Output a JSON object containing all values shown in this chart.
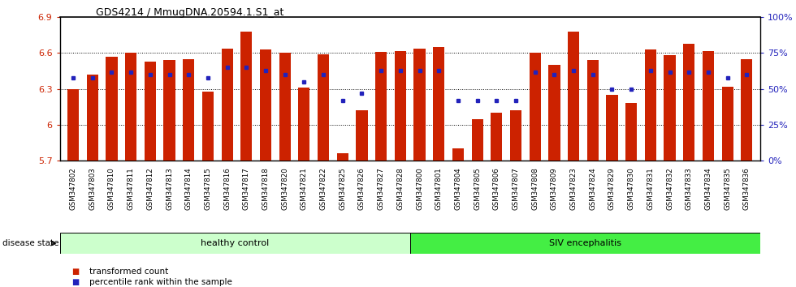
{
  "title": "GDS4214 / MmugDNA.20594.1.S1_at",
  "samples": [
    "GSM347802",
    "GSM347803",
    "GSM347810",
    "GSM347811",
    "GSM347812",
    "GSM347813",
    "GSM347814",
    "GSM347815",
    "GSM347816",
    "GSM347817",
    "GSM347818",
    "GSM347820",
    "GSM347821",
    "GSM347822",
    "GSM347825",
    "GSM347826",
    "GSM347827",
    "GSM347828",
    "GSM347800",
    "GSM347801",
    "GSM347804",
    "GSM347805",
    "GSM347806",
    "GSM347807",
    "GSM347808",
    "GSM347809",
    "GSM347823",
    "GSM347824",
    "GSM347829",
    "GSM347830",
    "GSM347831",
    "GSM347832",
    "GSM347833",
    "GSM347834",
    "GSM347835",
    "GSM347836"
  ],
  "bar_values": [
    6.3,
    6.42,
    6.57,
    6.6,
    6.53,
    6.54,
    6.55,
    6.28,
    6.64,
    6.78,
    6.63,
    6.6,
    6.31,
    6.59,
    5.76,
    6.12,
    6.61,
    6.62,
    6.64,
    6.65,
    5.8,
    6.05,
    6.1,
    6.12,
    6.6,
    6.5,
    6.78,
    6.54,
    6.25,
    6.18,
    6.63,
    6.58,
    6.68,
    6.62,
    6.32,
    6.55
  ],
  "percentile_values": [
    58,
    58,
    62,
    62,
    60,
    60,
    60,
    58,
    65,
    65,
    63,
    60,
    55,
    60,
    42,
    47,
    63,
    63,
    63,
    63,
    42,
    42,
    42,
    42,
    62,
    60,
    63,
    60,
    50,
    50,
    63,
    62,
    62,
    62,
    58,
    60
  ],
  "ylim_left": [
    5.7,
    6.9
  ],
  "ylim_right": [
    0,
    100
  ],
  "yticks_left": [
    5.7,
    6.0,
    6.3,
    6.6,
    6.9
  ],
  "ytick_labels_left": [
    "5.7",
    "6",
    "6.3",
    "6.6",
    "6.9"
  ],
  "yticks_right": [
    0,
    25,
    50,
    75,
    100
  ],
  "ytick_labels_right": [
    "0%",
    "25%",
    "50%",
    "75%",
    "100%"
  ],
  "bar_color": "#cc2200",
  "dot_color": "#2222bb",
  "bar_baseline": 5.7,
  "healthy_count": 18,
  "healthy_label": "healthy control",
  "disease_label": "SIV encephalitis",
  "healthy_color": "#ccffcc",
  "disease_color": "#44ee44",
  "legend_bar_label": "transformed count",
  "legend_dot_label": "percentile rank within the sample",
  "disease_state_label": "disease state",
  "background_color": "#ffffff",
  "plot_background": "#ffffff"
}
